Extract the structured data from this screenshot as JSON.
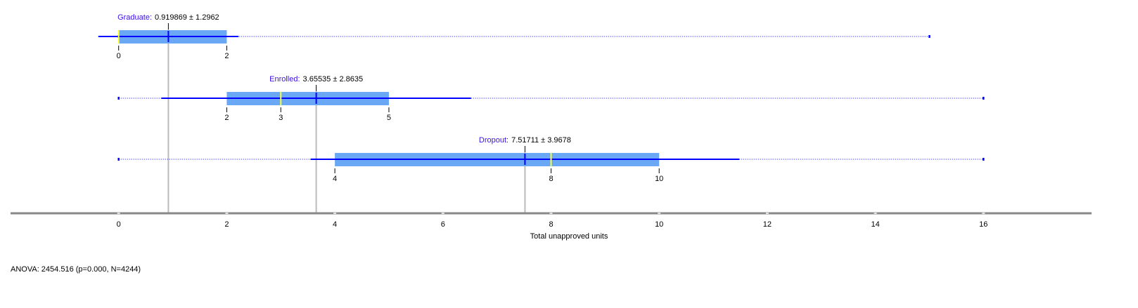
{
  "chart_data": {
    "type": "box",
    "xlabel": "Total unapproved units",
    "annotation": "ANOVA: 2454.516 (p=0.000, N=4244)",
    "xlim": [
      -2,
      18
    ],
    "xticks": [
      0,
      2,
      4,
      6,
      8,
      10,
      12,
      14,
      16
    ],
    "box_color": "#6aa7f5",
    "line_color": "#0000ff",
    "median_color": "#ffff33",
    "name_color": "#3a10e5",
    "series": [
      {
        "name": "Graduate:",
        "label": "0.919869 ± 1.2962",
        "mean": 0.919869,
        "sd": 1.2962,
        "min": 0,
        "q1": 0,
        "median": 0,
        "q3": 2,
        "max": 15
      },
      {
        "name": "Enrolled:",
        "label": "3.65535 ± 2.8635",
        "mean": 3.65535,
        "sd": 2.8635,
        "min": 0,
        "q1": 2,
        "median": 3,
        "q3": 5,
        "max": 16
      },
      {
        "name": "Dropout:",
        "label": "7.51711 ± 3.9678",
        "mean": 7.51711,
        "sd": 3.9678,
        "min": 0,
        "q1": 4,
        "median": 8,
        "q3": 10,
        "max": 16
      }
    ]
  }
}
